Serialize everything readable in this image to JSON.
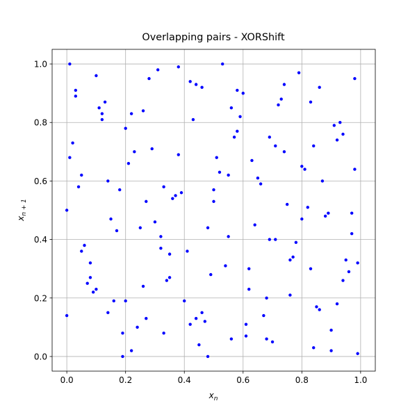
{
  "chart_data": {
    "type": "scatter",
    "title": "Overlapping pairs - XORShift",
    "xlabel": {
      "text": "x",
      "subscript": "n"
    },
    "ylabel": {
      "text": "x",
      "subscript": "n + 1"
    },
    "color": "#0000ff",
    "grid": true,
    "xlim": [
      -0.05,
      1.05
    ],
    "ylim": [
      -0.05,
      1.05
    ],
    "xticks": [
      {
        "value": 0,
        "label": "0.0"
      },
      {
        "value": 0.2,
        "label": "0.2"
      },
      {
        "value": 0.4,
        "label": "0.4"
      },
      {
        "value": 0.6,
        "label": "0.6"
      },
      {
        "value": 0.8,
        "label": "0.8"
      },
      {
        "value": 1,
        "label": "1.0"
      }
    ],
    "yticks": [
      {
        "value": 0,
        "label": "0.0"
      },
      {
        "value": 0.2,
        "label": "0.2"
      },
      {
        "value": 0.4,
        "label": "0.4"
      },
      {
        "value": 0.6,
        "label": "0.6"
      },
      {
        "value": 0.8,
        "label": "0.8"
      },
      {
        "value": 1,
        "label": "1.0"
      }
    ],
    "x": [
      0.01,
      0.0,
      0.0,
      0.19,
      0.48,
      0.53,
      0.98,
      0.99,
      0.2,
      0.16,
      0.03,
      0.05,
      0.08,
      0.12,
      0.25,
      0.29,
      0.33,
      0.37,
      0.41,
      0.44,
      0.47,
      0.51,
      0.55,
      0.58,
      0.62,
      0.66,
      0.7,
      0.73,
      0.77,
      0.81,
      0.85,
      0.89,
      0.93,
      0.96,
      0.02,
      0.06,
      0.1,
      0.14,
      0.18,
      0.22,
      0.26,
      0.3,
      0.34,
      0.38,
      0.42,
      0.46,
      0.5,
      0.54,
      0.57,
      0.61,
      0.65,
      0.69,
      0.72,
      0.76,
      0.8,
      0.84,
      0.88,
      0.91,
      0.95,
      0.04,
      0.09,
      0.13,
      0.17,
      0.21,
      0.24,
      0.28,
      0.32,
      0.36,
      0.4,
      0.43,
      0.49,
      0.52,
      0.56,
      0.6,
      0.64,
      0.67,
      0.71,
      0.75,
      0.79,
      0.83,
      0.87,
      0.9,
      0.94,
      0.97,
      0.07,
      0.11,
      0.15,
      0.23,
      0.27,
      0.31,
      0.35,
      0.39,
      0.45,
      0.59,
      0.63,
      0.68,
      0.74,
      0.78,
      0.82,
      0.86,
      0.92,
      0.99,
      0.03,
      0.08,
      0.14,
      0.2,
      0.26,
      0.32,
      0.38,
      0.44,
      0.5,
      0.56,
      0.62,
      0.68,
      0.74,
      0.8,
      0.86,
      0.92,
      0.98,
      0.05,
      0.12,
      0.19,
      0.27,
      0.35,
      0.42,
      0.48,
      0.55,
      0.61,
      0.69,
      0.76,
      0.83,
      0.9,
      0.97,
      0.01,
      0.1,
      0.22,
      0.33,
      0.46,
      0.58,
      0.71,
      0.84,
      0.94
    ],
    "values": [
      1.0,
      0.5,
      0.14,
      0.0,
      0.0,
      1.0,
      0.95,
      0.32,
      0.19,
      0.19,
      0.91,
      0.62,
      0.27,
      0.83,
      0.44,
      0.71,
      0.08,
      0.55,
      0.36,
      0.93,
      0.12,
      0.68,
      0.41,
      0.77,
      0.23,
      0.59,
      0.05,
      0.88,
      0.34,
      0.64,
      0.17,
      0.49,
      0.8,
      0.29,
      0.73,
      0.38,
      0.96,
      0.15,
      0.57,
      0.02,
      0.84,
      0.46,
      0.26,
      0.69,
      0.11,
      0.92,
      0.53,
      0.31,
      0.75,
      0.07,
      0.61,
      0.4,
      0.86,
      0.21,
      0.65,
      0.03,
      0.48,
      0.79,
      0.33,
      0.58,
      0.22,
      0.87,
      0.43,
      0.66,
      0.1,
      0.95,
      0.37,
      0.54,
      0.19,
      0.81,
      0.28,
      0.63,
      0.06,
      0.9,
      0.45,
      0.14,
      0.72,
      0.52,
      0.97,
      0.3,
      0.6,
      0.09,
      0.76,
      0.42,
      0.25,
      0.85,
      0.47,
      0.7,
      0.13,
      0.98,
      0.35,
      0.56,
      0.04,
      0.82,
      0.67,
      0.2,
      0.93,
      0.39,
      0.51,
      0.16,
      0.74,
      0.01,
      0.89,
      0.32,
      0.6,
      0.78,
      0.24,
      0.41,
      0.99,
      0.13,
      0.57,
      0.85,
      0.3,
      0.06,
      0.7,
      0.47,
      0.92,
      0.18,
      0.64,
      0.36,
      0.81,
      0.08,
      0.53,
      0.27,
      0.94,
      0.44,
      0.62,
      0.11,
      0.75,
      0.33,
      0.87,
      0.02,
      0.49,
      0.68,
      0.23,
      0.83,
      0.58,
      0.15,
      0.91,
      0.4,
      0.72,
      0.26
    ]
  }
}
